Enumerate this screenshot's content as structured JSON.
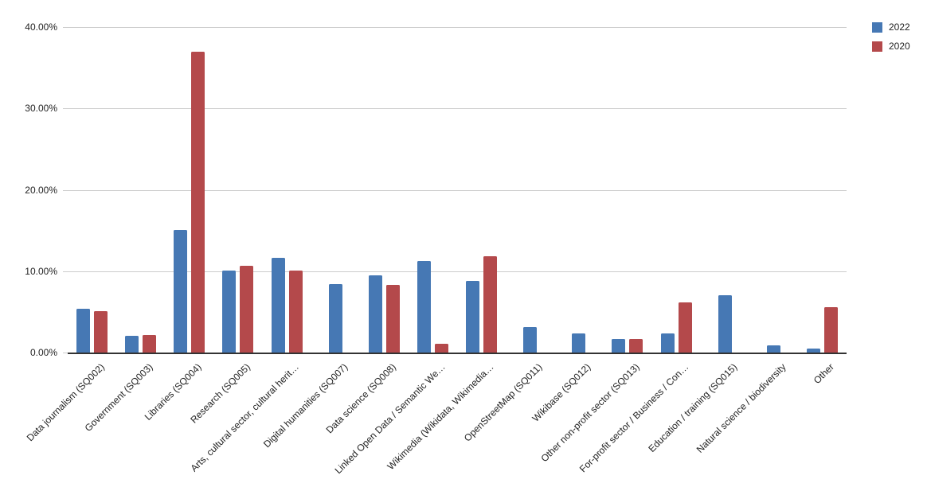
{
  "colors": {
    "series_2022": "#4678B4",
    "series_2020": "#B4494B",
    "gridline": "#cccccc",
    "axis": "#333333",
    "text": "#222222",
    "background": "#ffffff"
  },
  "legend": {
    "position": "top-right",
    "items": [
      {
        "label": "2022",
        "color": "#4678B4"
      },
      {
        "label": "2020",
        "color": "#B4494B"
      }
    ]
  },
  "chart_data": {
    "type": "bar",
    "title": "",
    "xlabel": "",
    "ylabel": "",
    "ylim": [
      0,
      40
    ],
    "grid": true,
    "legend_position": "top-right",
    "y_ticks": [
      {
        "label": "40.00%",
        "value": 40
      },
      {
        "label": "30.00%",
        "value": 30
      },
      {
        "label": "20.00%",
        "value": 20
      },
      {
        "label": "10.00%",
        "value": 10
      },
      {
        "label": "0.00%",
        "value": 0
      }
    ],
    "categories": [
      "Data journalism (SQ002)",
      "Government (SQ003)",
      "Libraries (SQ004)",
      "Research (SQ005)",
      "Arts, cultural sector, cultural herit…",
      "Digital humanities (SQ007)",
      "Data science (SQ008)",
      "Linked Open Data / Semantic We…",
      "Wikimedia (Wikidata, Wikimedia…",
      "OpenStreetMap (SQ011)",
      "Wikibase (SQ012)",
      "Other non-profit sector (SQ013)",
      "For-profit sector / Business / Con…",
      "Education / training (SQ015)",
      "Natural science / biodiversity",
      "Other"
    ],
    "series": [
      {
        "name": "2022",
        "color": "#4678B4",
        "values": [
          5.4,
          2.1,
          15.1,
          10.1,
          11.6,
          8.4,
          9.5,
          11.2,
          8.8,
          3.1,
          2.3,
          1.7,
          2.3,
          7.0,
          0.9,
          0.5
        ]
      },
      {
        "name": "2020",
        "color": "#B4494B",
        "values": [
          5.1,
          2.2,
          37.0,
          10.7,
          10.1,
          0,
          8.3,
          1.1,
          11.8,
          0,
          0,
          1.7,
          6.2,
          0,
          0,
          5.6
        ]
      }
    ]
  }
}
